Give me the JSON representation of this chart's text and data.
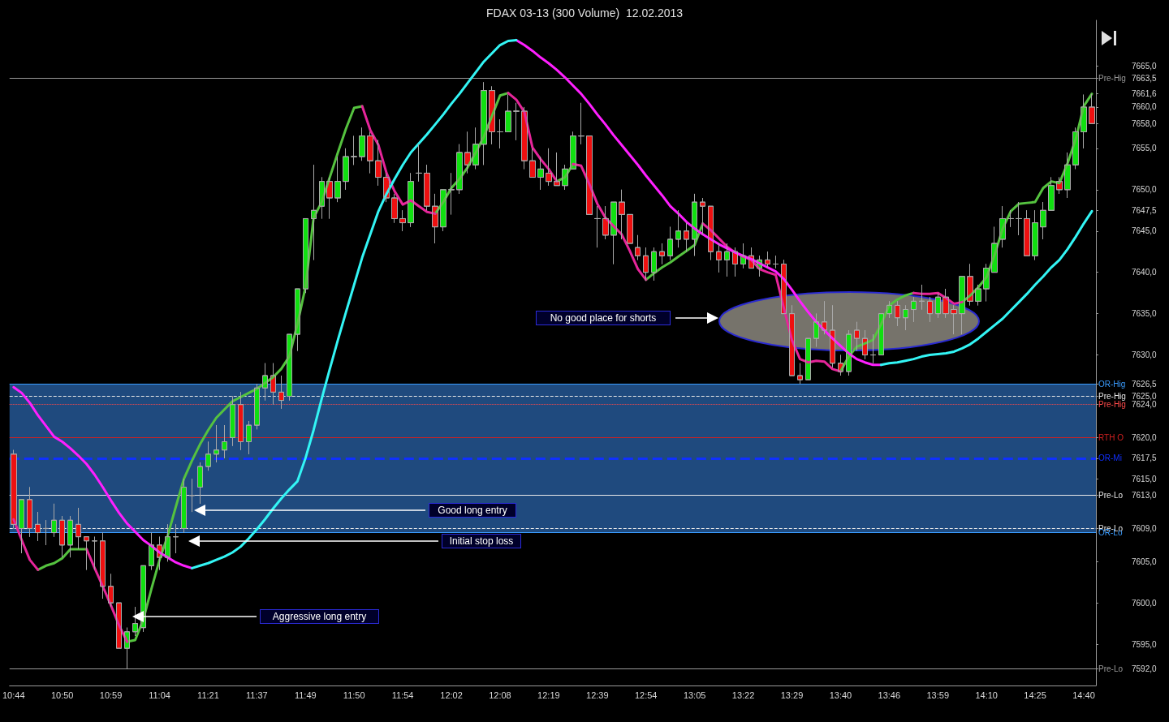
{
  "chart_data": {
    "type": "candlestick",
    "title": "FDAX 03-13 (300 Volume)  12.02.2013",
    "categories": [
      "10:44",
      null,
      null,
      null,
      null,
      null,
      "10:50",
      null,
      null,
      null,
      null,
      null,
      "10:59",
      null,
      null,
      null,
      null,
      null,
      "11:04",
      null,
      null,
      null,
      null,
      null,
      "11:21",
      null,
      null,
      null,
      null,
      null,
      "11:37",
      null,
      null,
      null,
      null,
      null,
      "11:49",
      null,
      null,
      null,
      null,
      null,
      "11:50",
      null,
      null,
      null,
      null,
      null,
      "11:54",
      null,
      null,
      null,
      null,
      null,
      "12:02",
      null,
      null,
      null,
      null,
      null,
      "12:08",
      null,
      null,
      null,
      null,
      null,
      "12:19",
      null,
      null,
      null,
      null,
      null,
      "12:39",
      null,
      null,
      null,
      null,
      null,
      "12:54",
      null,
      null,
      null,
      null,
      null,
      "13:05",
      null,
      null,
      null,
      null,
      null,
      "13:22",
      null,
      null,
      null,
      null,
      null,
      "13:29",
      null,
      null,
      null,
      null,
      null,
      "13:40",
      null,
      null,
      null,
      null,
      null,
      "13:46",
      null,
      null,
      null,
      null,
      null,
      "13:59",
      null,
      null,
      null,
      null,
      null,
      "14:10",
      null,
      null,
      null,
      null,
      null,
      "14:25",
      null,
      null,
      null,
      null,
      null,
      "14:40",
      null
    ],
    "ohlc": [
      [
        7618,
        7618.5,
        7609,
        7609.5
      ],
      [
        7609,
        7612.5,
        7606,
        7612.5
      ],
      [
        7612.5,
        7614,
        7608,
        7609
      ],
      [
        7609.5,
        7611,
        7607.5,
        7608.5
      ],
      [
        7609,
        7610,
        7607,
        7609
      ],
      [
        7608.5,
        7612,
        7608,
        7610
      ],
      [
        7610,
        7610.5,
        7605.5,
        7607
      ],
      [
        7607,
        7610.5,
        7605.5,
        7610
      ],
      [
        7609.5,
        7611.5,
        7606.5,
        7608
      ],
      [
        7608,
        7608,
        7604,
        7607.5
      ],
      [
        7607.5,
        7608,
        7604,
        7607.5
      ],
      [
        7607.5,
        7608.5,
        7600.5,
        7602
      ],
      [
        7602,
        7603.5,
        7599.5,
        7600
      ],
      [
        7600,
        7600,
        7594.5,
        7594.5
      ],
      [
        7594.5,
        7597,
        7592,
        7596.5
      ],
      [
        7596.5,
        7599.5,
        7596,
        7597.5
      ],
      [
        7597,
        7604.5,
        7596.5,
        7604.5
      ],
      [
        7604.5,
        7608.5,
        7604,
        7607
      ],
      [
        7607,
        7608,
        7604,
        7605.5
      ],
      [
        7605.5,
        7609.5,
        7605,
        7608
      ],
      [
        7608,
        7609.5,
        7606,
        7608
      ],
      [
        7609,
        7615,
        7608.5,
        7614
      ],
      [
        7613,
        7615,
        7611,
        7613
      ],
      [
        7614,
        7617,
        7612,
        7616.5
      ],
      [
        7616.5,
        7619.5,
        7616,
        7618
      ],
      [
        7618,
        7621.5,
        7617,
        7618.5
      ],
      [
        7618.5,
        7621.5,
        7617.5,
        7619.5
      ],
      [
        7620,
        7625,
        7619,
        7624
      ],
      [
        7624,
        7625.5,
        7618.5,
        7619.5
      ],
      [
        7619.5,
        7622,
        7618,
        7621.5
      ],
      [
        7621.5,
        7626.5,
        7621,
        7626
      ],
      [
        7626,
        7629,
        7624.5,
        7627.5
      ],
      [
        7627.5,
        7629,
        7624,
        7625.5
      ],
      [
        7625.5,
        7627.5,
        7623.5,
        7624.5
      ],
      [
        7625,
        7632.5,
        7624.5,
        7632.5
      ],
      [
        7632.5,
        7638,
        7630.5,
        7638
      ],
      [
        7638,
        7646.5,
        7637.5,
        7646.5
      ],
      [
        7646.5,
        7653,
        7641.5,
        7647.5
      ],
      [
        7648,
        7651.5,
        7646.5,
        7651
      ],
      [
        7651,
        7651.5,
        7646.5,
        7649
      ],
      [
        7649,
        7654,
        7648.5,
        7651
      ],
      [
        7651,
        7655,
        7650,
        7654
      ],
      [
        7654,
        7656.5,
        7653,
        7654
      ],
      [
        7654,
        7657.5,
        7653.5,
        7656.5
      ],
      [
        7656.5,
        7657,
        7652,
        7653.5
      ],
      [
        7653.5,
        7656,
        7650.5,
        7651.5
      ],
      [
        7651.5,
        7652,
        7648.5,
        7649
      ],
      [
        7649,
        7649.5,
        7646,
        7646.5
      ],
      [
        7646.5,
        7647.5,
        7645,
        7646
      ],
      [
        7646,
        7652,
        7645.5,
        7651
      ],
      [
        7652,
        7655.5,
        7651,
        7652
      ],
      [
        7652,
        7653,
        7647.5,
        7648
      ],
      [
        7648,
        7649.5,
        7643.5,
        7645.5
      ],
      [
        7645.5,
        7650,
        7645,
        7650
      ],
      [
        7650,
        7652,
        7647,
        7650
      ],
      [
        7650,
        7655.5,
        7649.5,
        7654.5
      ],
      [
        7654.5,
        7657,
        7652,
        7653
      ],
      [
        7653,
        7657.5,
        7652.5,
        7655.5
      ],
      [
        7655.5,
        7663,
        7653,
        7662
      ],
      [
        7662,
        7662.5,
        7655.5,
        7657
      ],
      [
        7657,
        7658.5,
        7655,
        7657
      ],
      [
        7657,
        7661.5,
        7657,
        7659.5
      ],
      [
        7659.5,
        7660.5,
        7656,
        7659.5
      ],
      [
        7659.5,
        7660,
        7652.5,
        7653.5
      ],
      [
        7653.5,
        7655,
        7651.5,
        7651.5
      ],
      [
        7651.5,
        7654,
        7650,
        7652.5
      ],
      [
        7652,
        7655,
        7650.5,
        7651
      ],
      [
        7651,
        7654.5,
        7650.5,
        7650.5
      ],
      [
        7650.5,
        7653,
        7650,
        7652.5
      ],
      [
        7652.5,
        7657,
        7652.5,
        7656.5
      ],
      [
        7656.5,
        7660.5,
        7655.5,
        7656.5
      ],
      [
        7656.5,
        7656.5,
        7647,
        7647
      ],
      [
        7646.5,
        7648,
        7643,
        7646.5
      ],
      [
        7646.5,
        7648,
        7644,
        7644.5
      ],
      [
        7644.5,
        7648.5,
        7641,
        7648.5
      ],
      [
        7648.5,
        7650,
        7644,
        7647
      ],
      [
        7647,
        7647,
        7643.5,
        7643.5
      ],
      [
        7643,
        7644.5,
        7641.5,
        7642
      ],
      [
        7642,
        7643,
        7639,
        7640
      ],
      [
        7640,
        7643,
        7639,
        7642.5
      ],
      [
        7642.5,
        7643.5,
        7641,
        7642
      ],
      [
        7642,
        7645.5,
        7641.5,
        7644
      ],
      [
        7644,
        7647.5,
        7643,
        7645
      ],
      [
        7645,
        7646,
        7642.5,
        7644
      ],
      [
        7644,
        7649.5,
        7642,
        7648.5
      ],
      [
        7648.5,
        7649,
        7644.5,
        7648
      ],
      [
        7648,
        7648,
        7641.5,
        7642.5
      ],
      [
        7642.5,
        7643.5,
        7640,
        7641.5
      ],
      [
        7641.5,
        7643.5,
        7639.5,
        7642.5
      ],
      [
        7642.5,
        7643,
        7639.5,
        7641
      ],
      [
        7641,
        7643.5,
        7640.5,
        7642
      ],
      [
        7642,
        7643,
        7640.5,
        7640.5
      ],
      [
        7640.5,
        7642,
        7639.5,
        7641.5
      ],
      [
        7641.5,
        7642.5,
        7640.5,
        7641
      ],
      [
        7641,
        7642,
        7640.5,
        7641
      ],
      [
        7641,
        7641.5,
        7635,
        7635
      ],
      [
        7635,
        7636,
        7627.5,
        7627.5
      ],
      [
        7627.5,
        7629,
        7626.5,
        7627
      ],
      [
        7627,
        7632,
        7627,
        7632
      ],
      [
        7632,
        7635,
        7631,
        7634
      ],
      [
        7634,
        7636.5,
        7632.5,
        7633
      ],
      [
        7633,
        7636,
        7628.5,
        7629
      ],
      [
        7629,
        7630,
        7627.5,
        7628
      ],
      [
        7628,
        7633,
        7627.5,
        7632.5
      ],
      [
        7633,
        7634,
        7630.5,
        7632
      ],
      [
        7632,
        7633,
        7629.5,
        7630
      ],
      [
        7630,
        7632.5,
        7629,
        7630
      ],
      [
        7630,
        7635,
        7630,
        7635
      ],
      [
        7635,
        7636.5,
        7634.5,
        7636
      ],
      [
        7636,
        7636.5,
        7633.5,
        7634.5
      ],
      [
        7634.5,
        7636,
        7633,
        7635.5
      ],
      [
        7635.5,
        7637,
        7634,
        7636.5
      ],
      [
        7636.5,
        7638.5,
        7635.5,
        7636.5
      ],
      [
        7636.5,
        7637,
        7634,
        7635
      ],
      [
        7635,
        7637.5,
        7634.5,
        7637
      ],
      [
        7637,
        7638,
        7634.5,
        7635
      ],
      [
        7635.5,
        7636,
        7632.5,
        7635
      ],
      [
        7635,
        7639.5,
        7632.5,
        7639.5
      ],
      [
        7639.5,
        7641,
        7636,
        7636.5
      ],
      [
        7636.5,
        7638.5,
        7636,
        7638
      ],
      [
        7638,
        7641,
        7636.5,
        7640.5
      ],
      [
        7640,
        7645.5,
        7640,
        7643.5
      ],
      [
        7644,
        7648,
        7643,
        7646.5
      ],
      [
        7646.5,
        7647.5,
        7645.5,
        7646.5
      ],
      [
        7646.5,
        7648.5,
        7644.5,
        7646.5
      ],
      [
        7646.5,
        7647.5,
        7642,
        7642
      ],
      [
        7642,
        7647.5,
        7641.5,
        7646
      ],
      [
        7645.5,
        7648.5,
        7644,
        7647.5
      ],
      [
        7647.5,
        7651.5,
        7647.5,
        7650.5
      ],
      [
        7651,
        7651.5,
        7649.5,
        7650
      ],
      [
        7650,
        7654.5,
        7649,
        7653
      ],
      [
        7653,
        7657.5,
        7652.5,
        7657
      ],
      [
        7657,
        7661.5,
        7655,
        7660
      ],
      [
        7660,
        7661.6,
        7658,
        7658
      ]
    ],
    "series": [
      {
        "type": "line",
        "color": "#55c23f",
        "values": [
          null,
          null,
          null,
          7604.0,
          7604.5,
          7604.8,
          7605.4,
          7606.5,
          7606.5,
          7606.5,
          null,
          null,
          null,
          null,
          7595.3,
          7595.5,
          7598,
          7601.7,
          7605.2,
          7608.1,
          7611.6,
          7615,
          7617.2,
          7619.2,
          7620.9,
          7622.4,
          7623.4,
          7624.4,
          7624.9,
          7625.4,
          7625.9,
          7626.6,
          7627.3,
          7628.3,
          7629.8,
          7633.7,
          7638.2,
          7646.6,
          7648.5,
          7651.5,
          7654.5,
          7657.4,
          7659.9,
          7660.1,
          null,
          null,
          null,
          null,
          null,
          null,
          null,
          null,
          7647.1,
          7648.5,
          7650.2,
          7651.3,
          7652.7,
          7654.5,
          7656.4,
          7658.9,
          7661.4,
          7661.7,
          null,
          null,
          null,
          null,
          null,
          7651.0,
          7651.5,
          7653.1,
          null,
          null,
          null,
          null,
          null,
          null,
          null,
          null,
          7639.1,
          7639.9,
          7640.6,
          7641.2,
          7641.9,
          7642.6,
          7643.3,
          7645.9,
          null,
          null,
          null,
          null,
          null,
          null,
          null,
          null,
          null,
          null,
          null,
          null,
          null,
          null,
          null,
          null,
          7628.0,
          7629.8,
          7631.0,
          7631.4,
          7631.8,
          7633.7,
          7636.0,
          7636.7,
          7637.2,
          7637.5,
          null,
          null,
          null,
          null,
          null,
          7636.4,
          7637.2,
          7638.2,
          7639.4,
          7642.1,
          7645.3,
          7647.4,
          7648.3,
          7648.4,
          7648.5,
          7650.2,
          7651.0,
          7650.8,
          7653.2,
          7656.1,
          7660.1,
          7661.6
        ]
      },
      {
        "type": "line",
        "color": "#e6259a",
        "values": [
          7610.1,
          7607.6,
          7605.2,
          7604.0,
          null,
          null,
          null,
          null,
          null,
          7606.5,
          7604.2,
          7602.0,
          7599.7,
          7597.3,
          7595.3,
          null,
          null,
          null,
          null,
          null,
          null,
          null,
          null,
          null,
          null,
          null,
          null,
          null,
          null,
          null,
          null,
          null,
          null,
          null,
          null,
          null,
          null,
          null,
          null,
          null,
          null,
          null,
          null,
          7660.1,
          7657.2,
          7655.4,
          7652.0,
          7649.8,
          7648.2,
          7648.7,
          7648.0,
          7647.3,
          7647.1,
          null,
          null,
          null,
          null,
          null,
          null,
          null,
          null,
          7661.7,
          7660.9,
          7659.4,
          7655.1,
          7653.7,
          7652.5,
          7651.0,
          null,
          7653.1,
          7652.9,
          7650.7,
          7648.3,
          7646.6,
          7645.6,
          7644.6,
          7642.6,
          7640.4,
          7639.1,
          null,
          null,
          null,
          null,
          null,
          null,
          7645.9,
          7645.1,
          7644.1,
          7643.1,
          7642.4,
          7641.9,
          7641.5,
          7640.4,
          7640.0,
          7639.7,
          7635.7,
          7631.8,
          7629.5,
          7629.1,
          7629.3,
          7629.2,
          7628.3,
          7628.0,
          null,
          null,
          null,
          null,
          null,
          null,
          null,
          null,
          7637.5,
          7637.4,
          7637.4,
          7637.5,
          7636.9,
          7636.2,
          7636.4,
          null,
          null,
          null,
          null,
          null,
          null,
          null,
          null,
          null,
          null,
          null,
          null,
          null,
          null,
          null,
          null
        ]
      },
      {
        "type": "line",
        "color": "#ff1fff",
        "values": [
          7626.1,
          7625.4,
          7624.2,
          7622.7,
          7621.4,
          7620.1,
          7619.5,
          7618.7,
          7617.8,
          7616.8,
          7615.5,
          7614,
          7612.4,
          7610.9,
          7609.6,
          7608.6,
          7607.6,
          7606.9,
          7606.1,
          7605.5,
          7604.9,
          7604.5,
          7604.2,
          null,
          null,
          null,
          null,
          null,
          null,
          null,
          null,
          null,
          null,
          null,
          null,
          null,
          null,
          null,
          null,
          null,
          null,
          null,
          null,
          null,
          null,
          null,
          null,
          null,
          null,
          null,
          null,
          null,
          null,
          null,
          null,
          null,
          null,
          null,
          null,
          null,
          null,
          null,
          7668.1,
          7667.5,
          7666.8,
          7666,
          7665.3,
          7664.5,
          7663.6,
          7662.6,
          7661.6,
          7660.4,
          7659.1,
          7657.9,
          7656.6,
          7655.4,
          7654.2,
          7653,
          7651.7,
          7650.5,
          7649.3,
          7648,
          7647.1,
          7646.1,
          7645.3,
          7644.6,
          7644,
          7643.4,
          7642.9,
          7642.4,
          7642,
          7641.6,
          7641.1,
          7640.6,
          7640.1,
          7639.2,
          7637.9,
          7636.5,
          7635.2,
          7634,
          7633,
          7632,
          7631.1,
          7630.2,
          7629.5,
          7629.1,
          7628.8,
          7628.8,
          null,
          null,
          null,
          null,
          null,
          null,
          null,
          null,
          null,
          null,
          null,
          null,
          null,
          null,
          null,
          null,
          null,
          null,
          null,
          null,
          null,
          null,
          null,
          null,
          null,
          null
        ]
      },
      {
        "type": "line",
        "color": "#33f5f5",
        "values": [
          null,
          null,
          null,
          null,
          null,
          null,
          null,
          null,
          null,
          null,
          null,
          null,
          null,
          null,
          null,
          null,
          null,
          null,
          null,
          null,
          null,
          null,
          7604.2,
          7604.5,
          7604.8,
          7605.2,
          7605.6,
          7606.1,
          7606.8,
          7607.8,
          7608.9,
          7610.1,
          7611.4,
          7612.6,
          7613.7,
          7614.7,
          7617.5,
          7620.9,
          7624.7,
          7628.3,
          7631.8,
          7635.2,
          7638.5,
          7641.8,
          7644.6,
          7647.4,
          7649.5,
          7651.3,
          7653,
          7654.5,
          7655.6,
          7656.7,
          7657.9,
          7659.1,
          7660.4,
          7661.6,
          7662.9,
          7664.2,
          7665.5,
          7666.5,
          7667.5,
          7668,
          7668.1,
          null,
          null,
          null,
          null,
          null,
          null,
          null,
          null,
          null,
          null,
          null,
          null,
          null,
          null,
          null,
          null,
          null,
          null,
          null,
          null,
          null,
          null,
          null,
          null,
          null,
          null,
          null,
          null,
          null,
          null,
          null,
          null,
          null,
          null,
          null,
          null,
          null,
          null,
          null,
          null,
          null,
          null,
          null,
          null,
          7628.8,
          7629,
          7629.1,
          7629.3,
          7629.5,
          7629.8,
          7630,
          7630.1,
          7630.2,
          7630.4,
          7630.8,
          7631.3,
          7632,
          7632.8,
          7633.6,
          7634.4,
          7635.4,
          7636.4,
          7637.4,
          7638.5,
          7639.5,
          7640.6,
          7641.5,
          7642.8,
          7644.3,
          7645.9,
          7647.4
        ]
      }
    ],
    "ylim": [
      7590,
      7670.5
    ],
    "yticks": [
      {
        "value": 7592,
        "label": "7592,0"
      },
      {
        "value": 7595,
        "label": "7595,0"
      },
      {
        "value": 7600,
        "label": "7600,0"
      },
      {
        "value": 7605,
        "label": "7605,0"
      },
      {
        "value": 7609,
        "label": "7609,0"
      },
      {
        "value": 7613,
        "label": "7613,0"
      },
      {
        "value": 7615,
        "label": "7615,0"
      },
      {
        "value": 7617.5,
        "label": "7617,5"
      },
      {
        "value": 7620,
        "label": "7620,0"
      },
      {
        "value": 7624,
        "label": "7624,0"
      },
      {
        "value": 7625,
        "label": "7625,0"
      },
      {
        "value": 7626.5,
        "label": "7626,5"
      },
      {
        "value": 7630,
        "label": "7630,0"
      },
      {
        "value": 7635,
        "label": "7635,0"
      },
      {
        "value": 7640,
        "label": "7640,0"
      },
      {
        "value": 7645,
        "label": "7645,0"
      },
      {
        "value": 7647.5,
        "label": "7647,5"
      },
      {
        "value": 7650,
        "label": "7650,0"
      },
      {
        "value": 7655,
        "label": "7655,0"
      },
      {
        "value": 7658,
        "label": "7658,0"
      },
      {
        "value": 7660,
        "label": "7660,0"
      },
      {
        "value": 7661.6,
        "label": "7661,6"
      },
      {
        "value": 7663.5,
        "label": "7663,5"
      },
      {
        "value": 7665,
        "label": "7665,0"
      }
    ],
    "bands": [
      {
        "axis": "y",
        "from": 7608.5,
        "to": 7626.5,
        "color": "#1f4a7e"
      }
    ],
    "ref_lines": [
      {
        "axis": "y",
        "value": 7663.5,
        "label": "Pre-Hig",
        "color": "#9a9a9a",
        "line_style": "solid"
      },
      {
        "axis": "y",
        "value": 7626.5,
        "label": "OR-Hig",
        "color": "#3a9cff",
        "line_style": "solid"
      },
      {
        "axis": "y",
        "value": 7625,
        "label": "Pre-Hig",
        "color": "#e8e8e8",
        "line_style": "dashed"
      },
      {
        "axis": "y",
        "value": 7624,
        "label": "Pre-Hig",
        "color": "#ff4a4a",
        "line_style": "dotted"
      },
      {
        "axis": "y",
        "value": 7620,
        "label": "RTH O",
        "color": "#d02020",
        "line_style": "solid"
      },
      {
        "axis": "y",
        "value": 7617.5,
        "label": "OR-Mi",
        "color": "#1030ff",
        "line_style": "dashed"
      },
      {
        "axis": "y",
        "value": 7613,
        "label": "Pre-Lo",
        "color": "#e8e8e8",
        "line_style": "solid"
      },
      {
        "axis": "y",
        "value": 7609,
        "label": "Pre-Lo",
        "color": "#e8e8e8",
        "line_style": "dashed"
      },
      {
        "axis": "y",
        "value": 7608.5,
        "label": "OR-Lo",
        "color": "#3a9cff",
        "line_style": "solid"
      },
      {
        "axis": "y",
        "value": 7592,
        "label": "Pre-Lo",
        "color": "#9a9a9a",
        "line_style": "solid"
      }
    ],
    "annotations": [
      "No good place for shorts",
      "Good long entry",
      "Initial stop loss",
      "Aggressive long entry"
    ]
  }
}
